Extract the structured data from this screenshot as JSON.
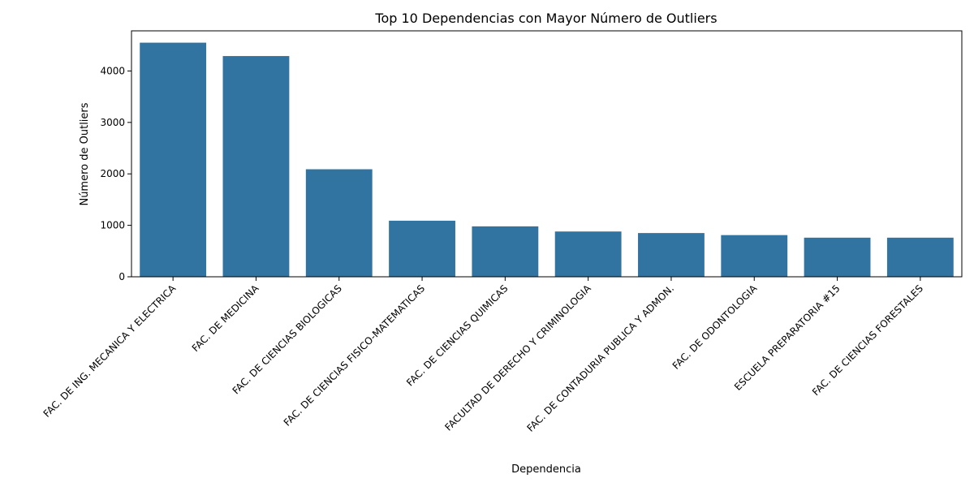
{
  "chart_data": {
    "type": "bar",
    "title": "Top 10 Dependencias con Mayor Número de Outliers",
    "xlabel": "Dependencia",
    "ylabel": "Número de Outliers",
    "categories": [
      "FAC. DE ING. MECANICA Y ELECTRICA",
      "FAC. DE MEDICINA",
      "FAC. DE CIENCIAS BIOLOGICAS",
      "FAC. DE CIENCIAS FISICO-MATEMATICAS",
      "FAC. DE CIENCIAS QUIMICAS",
      "FACULTAD DE DERECHO Y CRIMINOLOGIA",
      "FAC. DE CONTADURIA PUBLICA Y ADMON.",
      "FAC. DE ODONTOLOGIA",
      "ESCUELA PREPARATORIA #15",
      "FAC. DE CIENCIAS FORESTALES"
    ],
    "values": [
      4550,
      4290,
      2090,
      1090,
      980,
      880,
      850,
      810,
      760,
      760
    ],
    "ylim": [
      0,
      4780
    ],
    "yticks": [
      0,
      1000,
      2000,
      3000,
      4000
    ],
    "bar_color": "#3274a1",
    "grid": false,
    "legend": "none"
  }
}
